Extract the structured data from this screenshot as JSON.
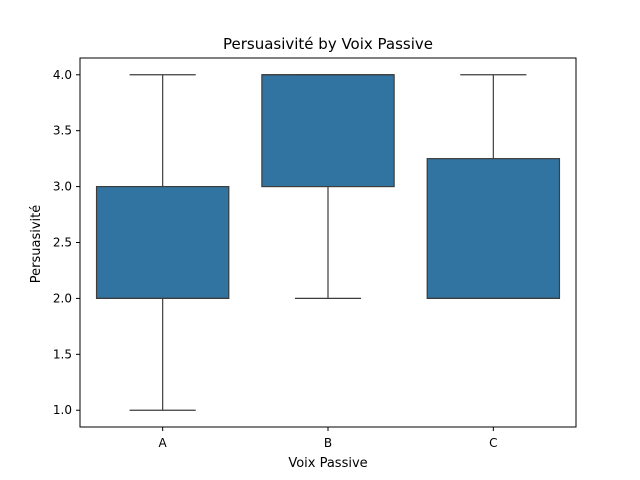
{
  "chart_data": {
    "type": "boxplot",
    "title": "Persuasivité by Voix Passive",
    "xlabel": "Voix Passive",
    "ylabel": "Persuasivité",
    "categories": [
      "A",
      "B",
      "C"
    ],
    "boxes": [
      {
        "category": "A",
        "whisker_low": 1.0,
        "q1": 2.0,
        "median": 2.0,
        "q3": 3.0,
        "whisker_high": 4.0
      },
      {
        "category": "B",
        "whisker_low": 2.0,
        "q1": 3.0,
        "median": 4.0,
        "q3": 4.0,
        "whisker_high": 4.0
      },
      {
        "category": "C",
        "whisker_low": 2.0,
        "q1": 2.0,
        "median": 2.0,
        "q3": 3.25,
        "whisker_high": 4.0
      }
    ],
    "ylim": [
      0.85,
      4.15
    ],
    "yticks": [
      "1.0",
      "1.5",
      "2.0",
      "2.5",
      "3.0",
      "3.5",
      "4.0"
    ],
    "box_color": "#3274a1",
    "line_color": "#3d3d3d",
    "grid": false,
    "legend": "none"
  }
}
